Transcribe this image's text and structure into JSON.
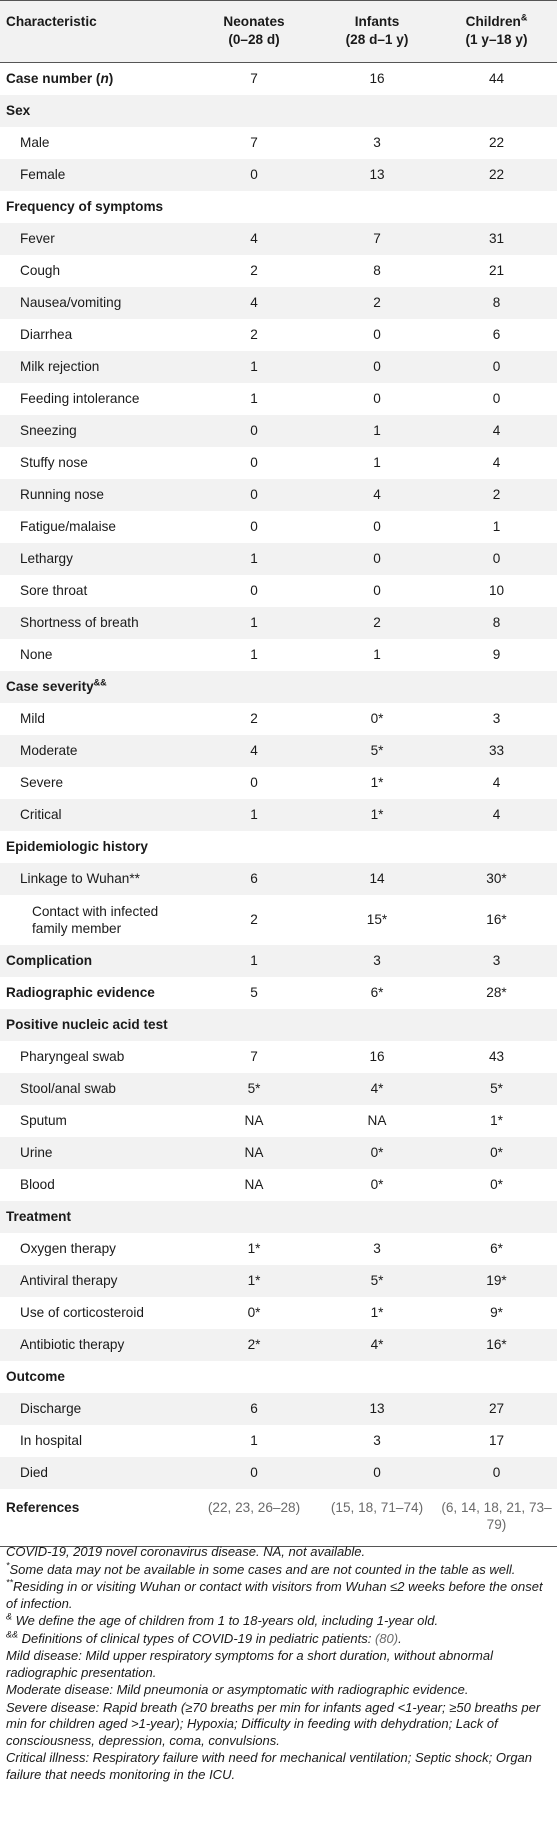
{
  "header": {
    "characteristic": "Characteristic",
    "neonates": "Neonates",
    "neonates_range": "(0–28 d)",
    "infants": "Infants",
    "infants_range": "(28 d–1 y)",
    "children": "Children",
    "children_sup": "&",
    "children_range": "(1 y–18 y)"
  },
  "rows": [
    {
      "label": "Case number (",
      "label_italic": "n",
      "label_after": ")",
      "cls": "bold",
      "v": [
        "7",
        "16",
        "44"
      ]
    },
    {
      "label": "Sex",
      "cls": "bold",
      "v": [
        "",
        "",
        ""
      ]
    },
    {
      "label": "Male",
      "cls": "ind1",
      "v": [
        "7",
        "3",
        "22"
      ]
    },
    {
      "label": "Female",
      "cls": "ind1",
      "v": [
        "0",
        "13",
        "22"
      ]
    },
    {
      "label": "Frequency of symptoms",
      "cls": "bold",
      "v": [
        "",
        "",
        ""
      ]
    },
    {
      "label": "Fever",
      "cls": "ind1",
      "v": [
        "4",
        "7",
        "31"
      ]
    },
    {
      "label": "Cough",
      "cls": "ind1",
      "v": [
        "2",
        "8",
        "21"
      ]
    },
    {
      "label": "Nausea/vomiting",
      "cls": "ind1",
      "v": [
        "4",
        "2",
        "8"
      ]
    },
    {
      "label": "Diarrhea",
      "cls": "ind1",
      "v": [
        "2",
        "0",
        "6"
      ]
    },
    {
      "label": "Milk rejection",
      "cls": "ind1",
      "v": [
        "1",
        "0",
        "0"
      ]
    },
    {
      "label": "Feeding intolerance",
      "cls": "ind1",
      "v": [
        "1",
        "0",
        "0"
      ]
    },
    {
      "label": "Sneezing",
      "cls": "ind1",
      "v": [
        "0",
        "1",
        "4"
      ]
    },
    {
      "label": "Stuffy nose",
      "cls": "ind1",
      "v": [
        "0",
        "1",
        "4"
      ]
    },
    {
      "label": "Running nose",
      "cls": "ind1",
      "v": [
        "0",
        "4",
        "2"
      ]
    },
    {
      "label": "Fatigue/malaise",
      "cls": "ind1",
      "v": [
        "0",
        "0",
        "1"
      ]
    },
    {
      "label": "Lethargy",
      "cls": "ind1",
      "v": [
        "1",
        "0",
        "0"
      ]
    },
    {
      "label": "Sore throat",
      "cls": "ind1",
      "v": [
        "0",
        "0",
        "10"
      ]
    },
    {
      "label": "Shortness of breath",
      "cls": "ind1",
      "v": [
        "1",
        "2",
        "8"
      ]
    },
    {
      "label": "None",
      "cls": "ind1",
      "v": [
        "1",
        "1",
        "9"
      ]
    },
    {
      "label": "Case severity",
      "sup": "&&",
      "cls": "bold",
      "v": [
        "",
        "",
        ""
      ]
    },
    {
      "label": "Mild",
      "cls": "ind1",
      "v": [
        "2",
        "0*",
        "3"
      ]
    },
    {
      "label": "Moderate",
      "cls": "ind1",
      "v": [
        "4",
        "5*",
        "33"
      ]
    },
    {
      "label": "Severe",
      "cls": "ind1",
      "v": [
        "0",
        "1*",
        "4"
      ]
    },
    {
      "label": "Critical",
      "cls": "ind1",
      "v": [
        "1",
        "1*",
        "4"
      ]
    },
    {
      "label": "Epidemiologic history",
      "cls": "bold",
      "v": [
        "",
        "",
        ""
      ]
    },
    {
      "label": "Linkage to Wuhan**",
      "cls": "ind1",
      "v": [
        "6",
        "14",
        "30*"
      ]
    },
    {
      "label": "Contact with infected family member",
      "cls": "ind2",
      "tall": true,
      "v": [
        "2",
        "15*",
        "16*"
      ]
    },
    {
      "label": "Complication",
      "cls": "bold",
      "v": [
        "1",
        "3",
        "3"
      ]
    },
    {
      "label": "Radiographic evidence",
      "cls": "bold",
      "v": [
        "5",
        "6*",
        "28*"
      ]
    },
    {
      "label": "Positive nucleic acid test",
      "cls": "bold",
      "v": [
        "",
        "",
        ""
      ]
    },
    {
      "label": "Pharyngeal swab",
      "cls": "ind1",
      "v": [
        "7",
        "16",
        "43"
      ]
    },
    {
      "label": "Stool/anal swab",
      "cls": "ind1",
      "v": [
        "5*",
        "4*",
        "5*"
      ]
    },
    {
      "label": "Sputum",
      "cls": "ind1",
      "v": [
        "NA",
        "NA",
        "1*"
      ]
    },
    {
      "label": "Urine",
      "cls": "ind1",
      "v": [
        "NA",
        "0*",
        "0*"
      ]
    },
    {
      "label": "Blood",
      "cls": "ind1",
      "v": [
        "NA",
        "0*",
        "0*"
      ]
    },
    {
      "label": "Treatment",
      "cls": "bold",
      "v": [
        "",
        "",
        ""
      ]
    },
    {
      "label": "Oxygen therapy",
      "cls": "ind1",
      "v": [
        "1*",
        "3",
        "6*"
      ]
    },
    {
      "label": "Antiviral therapy",
      "cls": "ind1",
      "v": [
        "1*",
        "5*",
        "19*"
      ]
    },
    {
      "label": "Use of corticosteroid",
      "cls": "ind1",
      "v": [
        "0*",
        "1*",
        "9*"
      ]
    },
    {
      "label": "Antibiotic therapy",
      "cls": "ind1",
      "v": [
        "2*",
        "4*",
        "16*"
      ]
    },
    {
      "label": "Outcome",
      "cls": "bold",
      "v": [
        "",
        "",
        ""
      ]
    },
    {
      "label": "Discharge",
      "cls": "ind1",
      "v": [
        "6",
        "13",
        "27"
      ]
    },
    {
      "label": "In hospital",
      "cls": "ind1",
      "v": [
        "1",
        "3",
        "17"
      ]
    },
    {
      "label": "Died",
      "cls": "ind1",
      "v": [
        "0",
        "0",
        "0"
      ]
    },
    {
      "label": "References",
      "cls": "bold",
      "refs": true,
      "v": [
        "(22, 23, 26–28)",
        "(15, 18, 71–74)",
        "(6, 14, 18, 21, 73–79)"
      ]
    }
  ],
  "footnotes": {
    "abbrev": "COVID-19, 2019 novel coronavirus disease. NA, not available.",
    "f1_mark": "*",
    "f1": "Some data may not be available in some cases and are not counted in the table as well.",
    "f2_mark": "**",
    "f2": "Residing in or visiting Wuhan or contact with visitors from Wuhan ≤2 weeks before the onset of infection.",
    "f3_mark": "&",
    "f3": " We define the age of children from 1 to 18-years old, including 1-year old.",
    "f4_mark": "&&",
    "f4": " Definitions of clinical types of COVID-19 in pediatric patients: ",
    "f4_ref": "(80)",
    "f4_end": ".",
    "mild": "Mild disease: Mild upper respiratory symptoms for a short duration, without abnormal radiographic presentation.",
    "moderate": "Moderate disease: Mild pneumonia or asymptomatic with radiographic evidence.",
    "severe": "Severe disease: Rapid breath (≥70 breaths per min for infants aged <1-year; ≥50 breaths per min for children aged >1-year); Hypoxia; Difficulty in feeding with dehydration; Lack of consciousness, depression, coma, convulsions.",
    "critical": "Critical illness: Respiratory failure with need for mechanical ventilation; Septic shock; Organ failure that needs monitoring in the ICU."
  }
}
